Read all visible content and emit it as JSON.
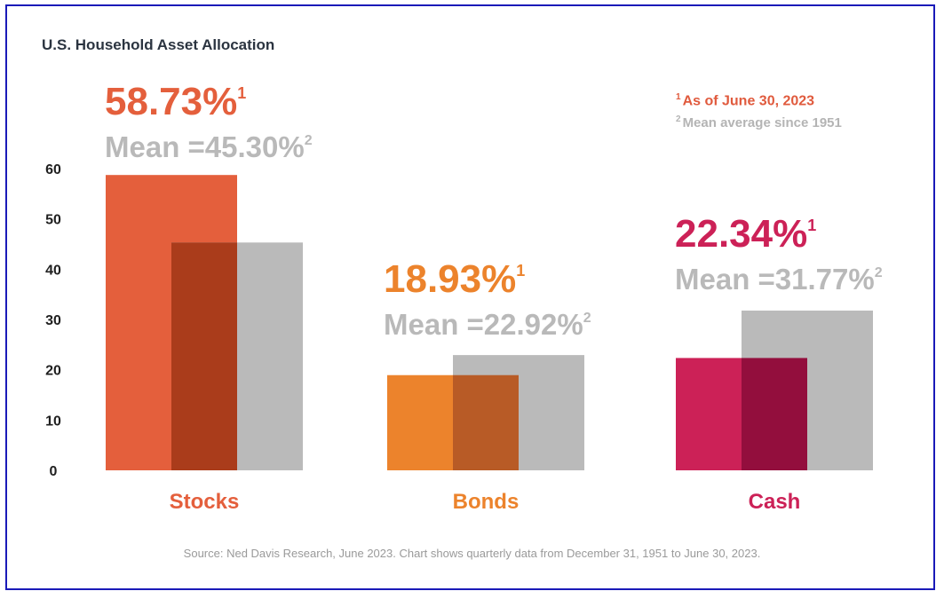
{
  "chart_data": {
    "type": "bar",
    "title": "U.S. Household Asset Allocation",
    "categories": [
      "Stocks",
      "Bonds",
      "Cash"
    ],
    "series": [
      {
        "name": "As of June 30, 2023",
        "values": [
          58.73,
          18.93,
          22.34
        ]
      },
      {
        "name": "Mean average since 1951",
        "values": [
          45.3,
          22.92,
          31.77
        ]
      }
    ],
    "value_labels": [
      "58.73%",
      "18.93%",
      "22.34%"
    ],
    "mean_labels": [
      "Mean =45.30%",
      "Mean =22.92%",
      "Mean =31.77%"
    ],
    "yticks": [
      "0",
      "10",
      "20",
      "30",
      "40",
      "50",
      "60"
    ],
    "ylim": [
      0,
      60
    ],
    "colors": [
      "#e45f3c",
      "#ec832c",
      "#cc2157"
    ],
    "overlap_colors": [
      "#aa3c1b",
      "#b85b26",
      "#930e3d"
    ],
    "mean_color": "#bababa",
    "footnote_1": "As of June 30, 2023",
    "footnote_2": "Mean average since 1951",
    "footnote_1_marker": "1",
    "footnote_2_marker": "2",
    "source": "Source: Ned Davis Research, June  2023. Chart shows quarterly data from December 31, 1951 to June 30, 2023."
  }
}
